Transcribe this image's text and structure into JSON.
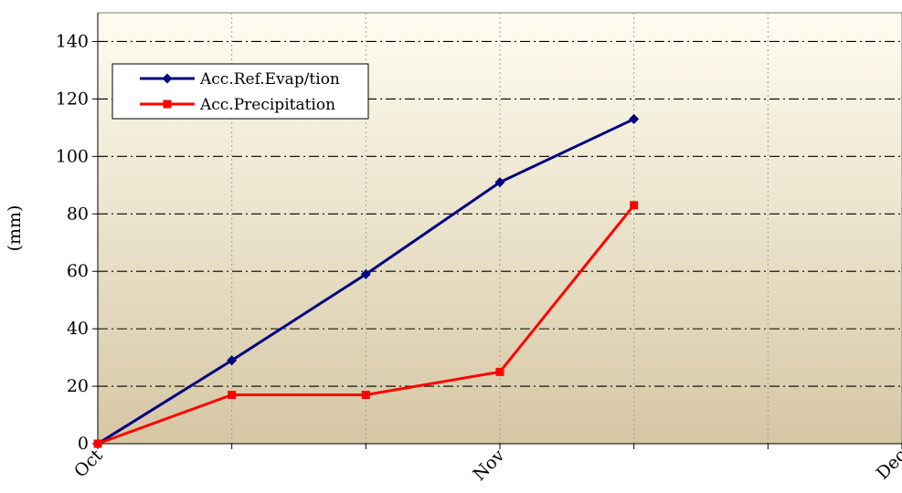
{
  "chart_data": {
    "type": "line",
    "ylabel": "(mm)",
    "ylim": [
      0,
      150
    ],
    "yticks": [
      0,
      20,
      40,
      60,
      80,
      100,
      120,
      140
    ],
    "x": [
      0,
      1,
      2,
      3,
      4
    ],
    "xlim": [
      0,
      6
    ],
    "xticks": [
      {
        "pos": 0,
        "label": "Oct"
      },
      {
        "pos": 3,
        "label": "Nov"
      },
      {
        "pos": 6,
        "label": "Dec"
      }
    ],
    "vertical_gridlines": [
      1,
      2,
      3,
      4,
      5
    ],
    "grid": true,
    "legend_position": "top-left",
    "series": [
      {
        "name": "Acc.Ref.Evap/tion",
        "color": "#000080",
        "marker": "diamond",
        "values": [
          0,
          29,
          59,
          91,
          113
        ]
      },
      {
        "name": "Acc.Precipitation",
        "color": "#ff0000",
        "marker": "square",
        "values": [
          0,
          17,
          17,
          25,
          83
        ]
      }
    ],
    "background_gradient": {
      "top": "#fefdf1",
      "bottom": "#d6c7a4"
    }
  }
}
